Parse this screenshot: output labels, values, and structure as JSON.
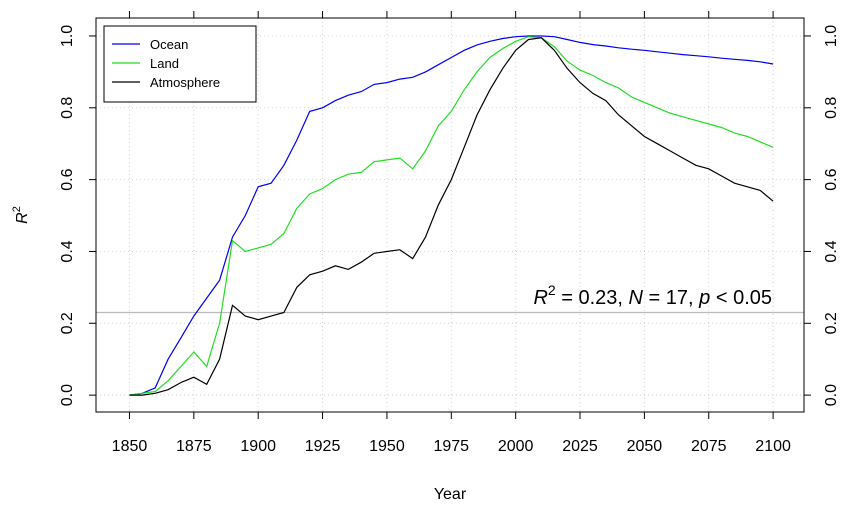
{
  "chart_data": {
    "type": "line",
    "x_label": "Year",
    "y_label": {
      "base": "R",
      "sup": "2"
    },
    "annotation": [
      "R",
      "2",
      " = 0.23, ",
      "N",
      " = 17, ",
      "p",
      " < 0.05"
    ],
    "hline": 0.23,
    "hline_color": "#bbbbbb",
    "grid": true,
    "legend": "top-left",
    "x": [
      1850,
      1855,
      1860,
      1865,
      1870,
      1875,
      1880,
      1885,
      1890,
      1895,
      1900,
      1905,
      1910,
      1915,
      1920,
      1925,
      1930,
      1935,
      1940,
      1945,
      1950,
      1955,
      1960,
      1965,
      1970,
      1975,
      1980,
      1985,
      1990,
      1995,
      2000,
      2005,
      2010,
      2015,
      2020,
      2025,
      2030,
      2035,
      2040,
      2045,
      2050,
      2055,
      2060,
      2065,
      2070,
      2075,
      2080,
      2085,
      2090,
      2095,
      2100
    ],
    "series": [
      {
        "name": "Ocean",
        "color": "#0000ee",
        "values": [
          0.0,
          0.005,
          0.02,
          0.1,
          0.16,
          0.22,
          0.27,
          0.32,
          0.44,
          0.5,
          0.58,
          0.59,
          0.64,
          0.71,
          0.79,
          0.8,
          0.82,
          0.835,
          0.845,
          0.865,
          0.87,
          0.88,
          0.885,
          0.9,
          0.92,
          0.94,
          0.96,
          0.975,
          0.985,
          0.993,
          0.998,
          1.0,
          1.0,
          0.998,
          0.99,
          0.982,
          0.976,
          0.972,
          0.967,
          0.963,
          0.96,
          0.956,
          0.952,
          0.948,
          0.945,
          0.942,
          0.938,
          0.935,
          0.932,
          0.928,
          0.922
        ]
      },
      {
        "name": "Land",
        "color": "#22dd22",
        "values": [
          0.0,
          0.005,
          0.01,
          0.04,
          0.08,
          0.12,
          0.08,
          0.2,
          0.43,
          0.4,
          0.41,
          0.42,
          0.45,
          0.52,
          0.56,
          0.575,
          0.6,
          0.615,
          0.62,
          0.65,
          0.655,
          0.66,
          0.63,
          0.68,
          0.75,
          0.79,
          0.85,
          0.9,
          0.94,
          0.965,
          0.985,
          0.998,
          0.995,
          0.97,
          0.93,
          0.905,
          0.89,
          0.87,
          0.855,
          0.83,
          0.815,
          0.8,
          0.785,
          0.775,
          0.765,
          0.755,
          0.745,
          0.73,
          0.72,
          0.705,
          0.69
        ]
      },
      {
        "name": "Atmosphere",
        "color": "#000000",
        "values": [
          0.0,
          0.0,
          0.005,
          0.015,
          0.035,
          0.05,
          0.03,
          0.1,
          0.25,
          0.22,
          0.21,
          0.22,
          0.23,
          0.3,
          0.335,
          0.345,
          0.36,
          0.35,
          0.37,
          0.395,
          0.4,
          0.405,
          0.38,
          0.44,
          0.53,
          0.6,
          0.69,
          0.78,
          0.85,
          0.91,
          0.96,
          0.99,
          0.995,
          0.96,
          0.91,
          0.87,
          0.84,
          0.82,
          0.78,
          0.75,
          0.72,
          0.7,
          0.68,
          0.66,
          0.64,
          0.63,
          0.61,
          0.59,
          0.58,
          0.57,
          0.54
        ]
      }
    ],
    "xlim": [
      1837,
      2112
    ],
    "xticks": [
      1850,
      1875,
      1900,
      1925,
      1950,
      1975,
      2000,
      2025,
      2050,
      2075,
      2100
    ],
    "ylim": [
      -0.047,
      1.05
    ],
    "yticks": [
      {
        "value": 0,
        "label": "0.0"
      },
      {
        "value": 0.2,
        "label": "0.2"
      },
      {
        "value": 0.4,
        "label": "0.4"
      },
      {
        "value": 0.6,
        "label": "0.6"
      },
      {
        "value": 0.8,
        "label": "0.8"
      },
      {
        "value": 1,
        "label": "1.0"
      }
    ]
  }
}
